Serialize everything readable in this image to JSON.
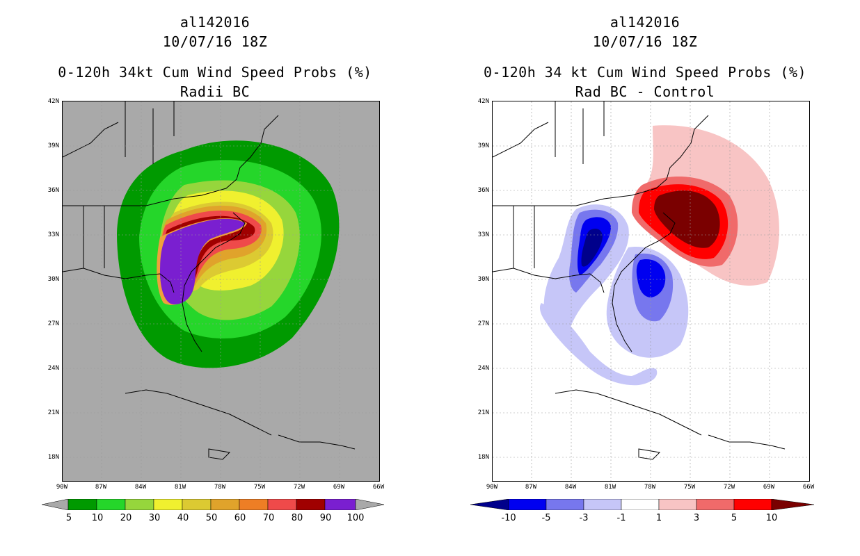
{
  "left": {
    "storm_id": "al142016",
    "datetime": "10/07/16 18Z",
    "title": "0-120h 34kt Cum Wind Speed Probs (%)",
    "subtitle": "Radii BC",
    "colorbar_labels": [
      "5",
      "10",
      "20",
      "30",
      "40",
      "50",
      "60",
      "70",
      "80",
      "90",
      "100"
    ],
    "colorbar_colors": [
      "#009a00",
      "#25d62a",
      "#96d63c",
      "#f0f02f",
      "#dcca32",
      "#e0a32b",
      "#ee7e25",
      "#ef4a4a",
      "#a00000",
      "#7a1fd0"
    ]
  },
  "right": {
    "storm_id": "al142016",
    "datetime": "10/07/16 18Z",
    "title": "0-120h 34 kt Cum Wind Speed Probs (%)",
    "subtitle": "Rad BC - Control",
    "colorbar_labels": [
      "-10",
      "-5",
      "-3",
      "-1",
      "1",
      "3",
      "5",
      "10"
    ],
    "colorbar_colors": [
      "#00008b",
      "#0000f0",
      "#7777ee",
      "#c6c6f8",
      "#ffffff",
      "#f8c4c4",
      "#f06a6a",
      "#ff0000",
      "#7a0000"
    ]
  },
  "axes": {
    "lat_labels": [
      "42N",
      "39N",
      "36N",
      "33N",
      "30N",
      "27N",
      "24N",
      "21N",
      "18N"
    ],
    "lon_labels": [
      "90W",
      "87W",
      "84W",
      "81W",
      "78W",
      "75W",
      "72W",
      "69W",
      "66W"
    ]
  },
  "colors": {
    "land_bg_left": "#a9a9a9",
    "coast": "#000000",
    "grid": "#9a9a9a"
  }
}
